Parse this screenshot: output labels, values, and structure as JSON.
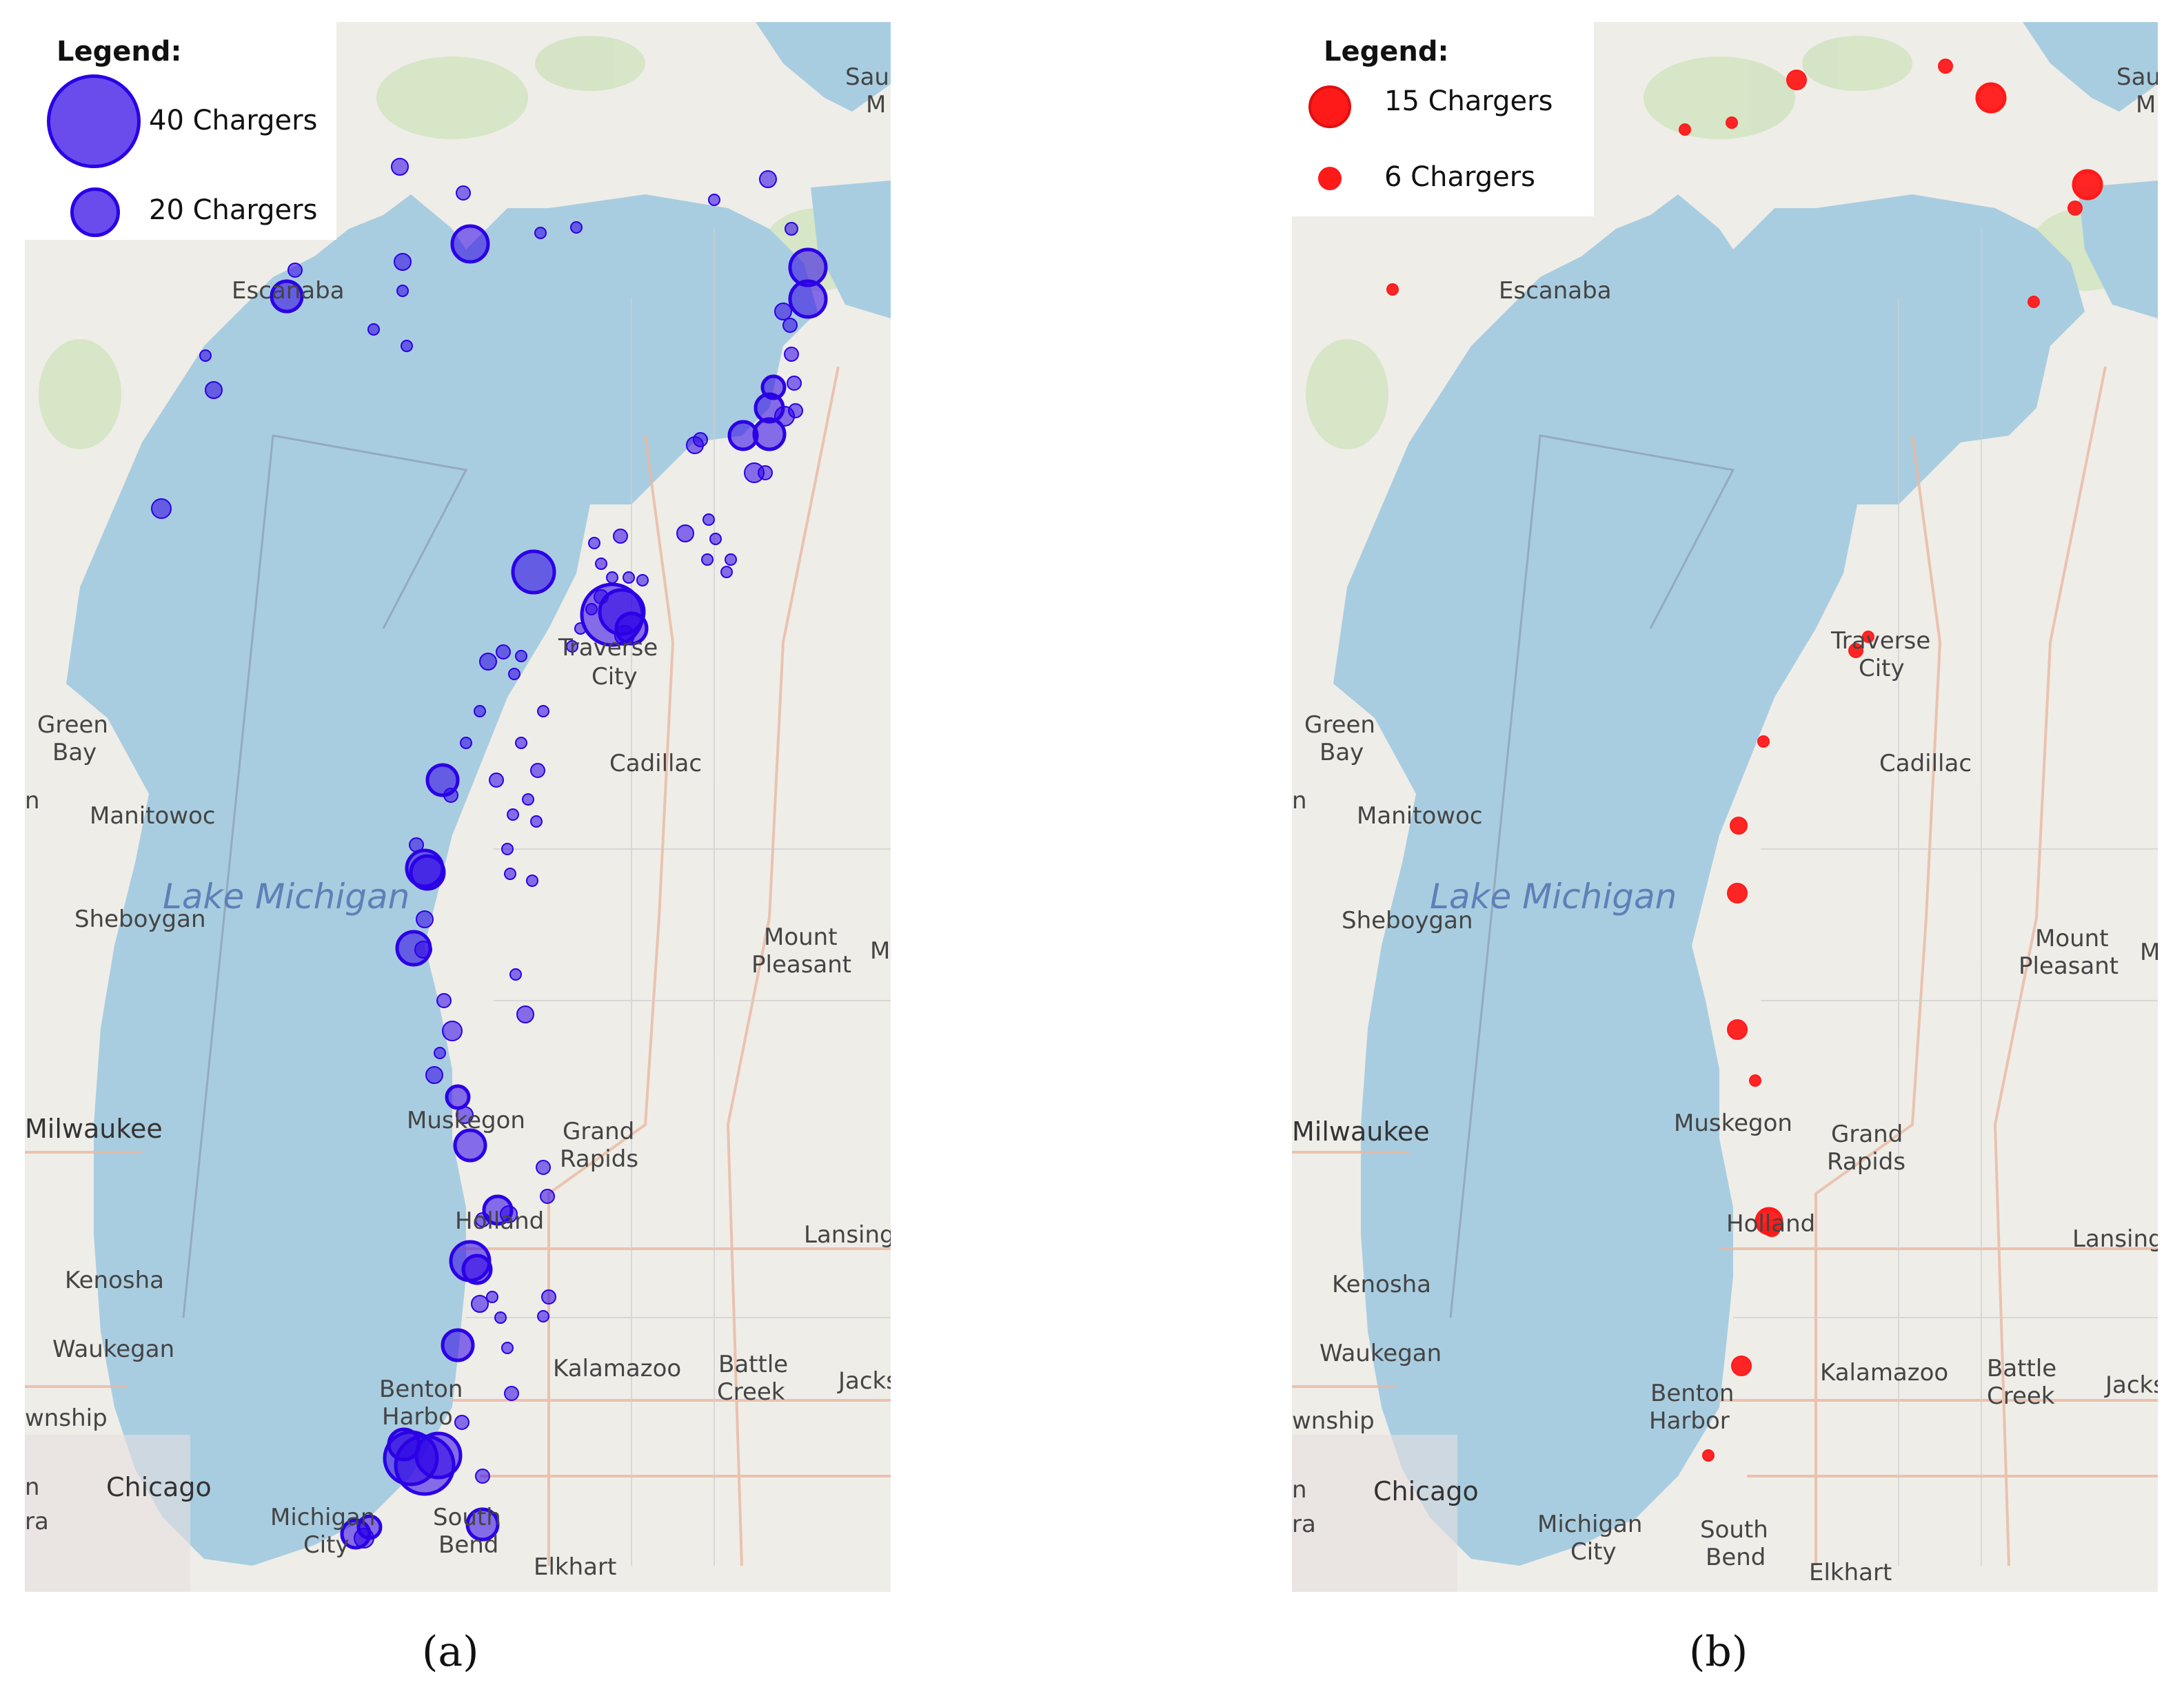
{
  "panels": [
    {
      "id": "a",
      "caption": "(a)",
      "legend": {
        "title": "Legend:",
        "items": [
          {
            "label": "40 Chargers",
            "chargers": 40
          },
          {
            "label": "20 Chargers",
            "chargers": 20
          }
        ]
      },
      "marker_color": "#2b00e6",
      "lake_label": "Lake Michigan",
      "places": [
        "Sault Ste. Marie",
        "Escanaba",
        "Green Bay",
        "Manitowoc",
        "Sheboygan",
        "Milwaukee",
        "Kenosha",
        "Waukegan",
        "Township",
        "Chicago",
        "Michigan City",
        "Benton Harbor",
        "South Bend",
        "Elkhart",
        "Traverse City",
        "Cadillac",
        "Mount Pleasant",
        "Muskegon",
        "Grand Rapids",
        "Holland",
        "Lansing",
        "Kalamazoo",
        "Battle Creek",
        "Jackson"
      ]
    },
    {
      "id": "b",
      "caption": "(b)",
      "legend": {
        "title": "Legend:",
        "items": [
          {
            "label": "15 Chargers",
            "chargers": 15
          },
          {
            "label": "6 Chargers",
            "chargers": 6
          }
        ]
      },
      "marker_color": "#ff1a1a",
      "lake_label": "Lake Michigan",
      "places": [
        "Sault Ste. Marie",
        "Escanaba",
        "Traverse City",
        "Green Bay",
        "Cadillac",
        "Manitowoc",
        "Sheboygan",
        "Mount Pleasant",
        "Milwaukee",
        "Muskegon",
        "Grand Rapids",
        "Holland",
        "Lansing",
        "Kenosha",
        "Waukegan",
        "Kalamazoo",
        "Battle Creek",
        "Jackson",
        "Benton Harbor",
        "Township",
        "Chicago",
        "Michigan City",
        "South Bend",
        "Elkhart"
      ]
    }
  ],
  "labels_shown": {
    "a": {
      "sault": "Saul",
      "sault2": "M",
      "escanaba": "Escanaba",
      "green": "Green",
      "bay": "Bay",
      "n": "n",
      "manitowoc": "Manitowoc",
      "sheboygan": "Sheboygan",
      "milwaukee": "Milwaukee",
      "kenosha": "Kenosha",
      "waukegan": "Waukegan",
      "township": "wnship",
      "chicago": "Chicago",
      "n2": "n",
      "ra": "ra",
      "michigan": "Michigan",
      "city": "City",
      "benton": "Benton",
      "harbor": "Harbo",
      "south": "South",
      "bend": "Bend",
      "elkhart": "Elkhart",
      "traverse": "Traverse",
      "tcity": "City",
      "cadillac": "Cadillac",
      "mount": "Mount",
      "pleasant": "Pleasant",
      "m": "M",
      "muskegon": "Muskegon",
      "grand": "Grand",
      "rapids": "Rapids",
      "holland": "Holland",
      "lansing": "Lansing",
      "kalamazoo": "Kalamazoo",
      "battle": "Battle",
      "creek": "Creek",
      "jackson": "Jacks"
    },
    "b": {
      "sault": "Sau",
      "sault2": "M",
      "escanaba": "Escanaba",
      "traverse": "Traverse",
      "tcity": "City",
      "green": "Green",
      "bay": "Bay",
      "n": "n",
      "cadillac": "Cadillac",
      "manitowoc": "Manitowoc",
      "sheboygan": "Sheboygan",
      "mount": "Mount",
      "pleasant": "Pleasant",
      "m": "M",
      "milwaukee": "Milwaukee",
      "muskegon": "Muskegon",
      "grand": "Grand",
      "rapids": "Rapids",
      "holland": "Holland",
      "lansing": "Lansing",
      "kenosha": "Kenosha",
      "waukegan": "Waukegan",
      "kalamazoo": "Kalamazoo",
      "battle": "Battle",
      "creek": "Creek",
      "jackson": "Jacks",
      "benton": "Benton",
      "harbor": "Harbor",
      "township": "wnship",
      "chicago": "Chicago",
      "n2": "n",
      "ra": "ra",
      "michigan": "Michigan",
      "city": "City",
      "south": "South",
      "bend": "Bend",
      "elkhart": "Elkhart"
    }
  }
}
